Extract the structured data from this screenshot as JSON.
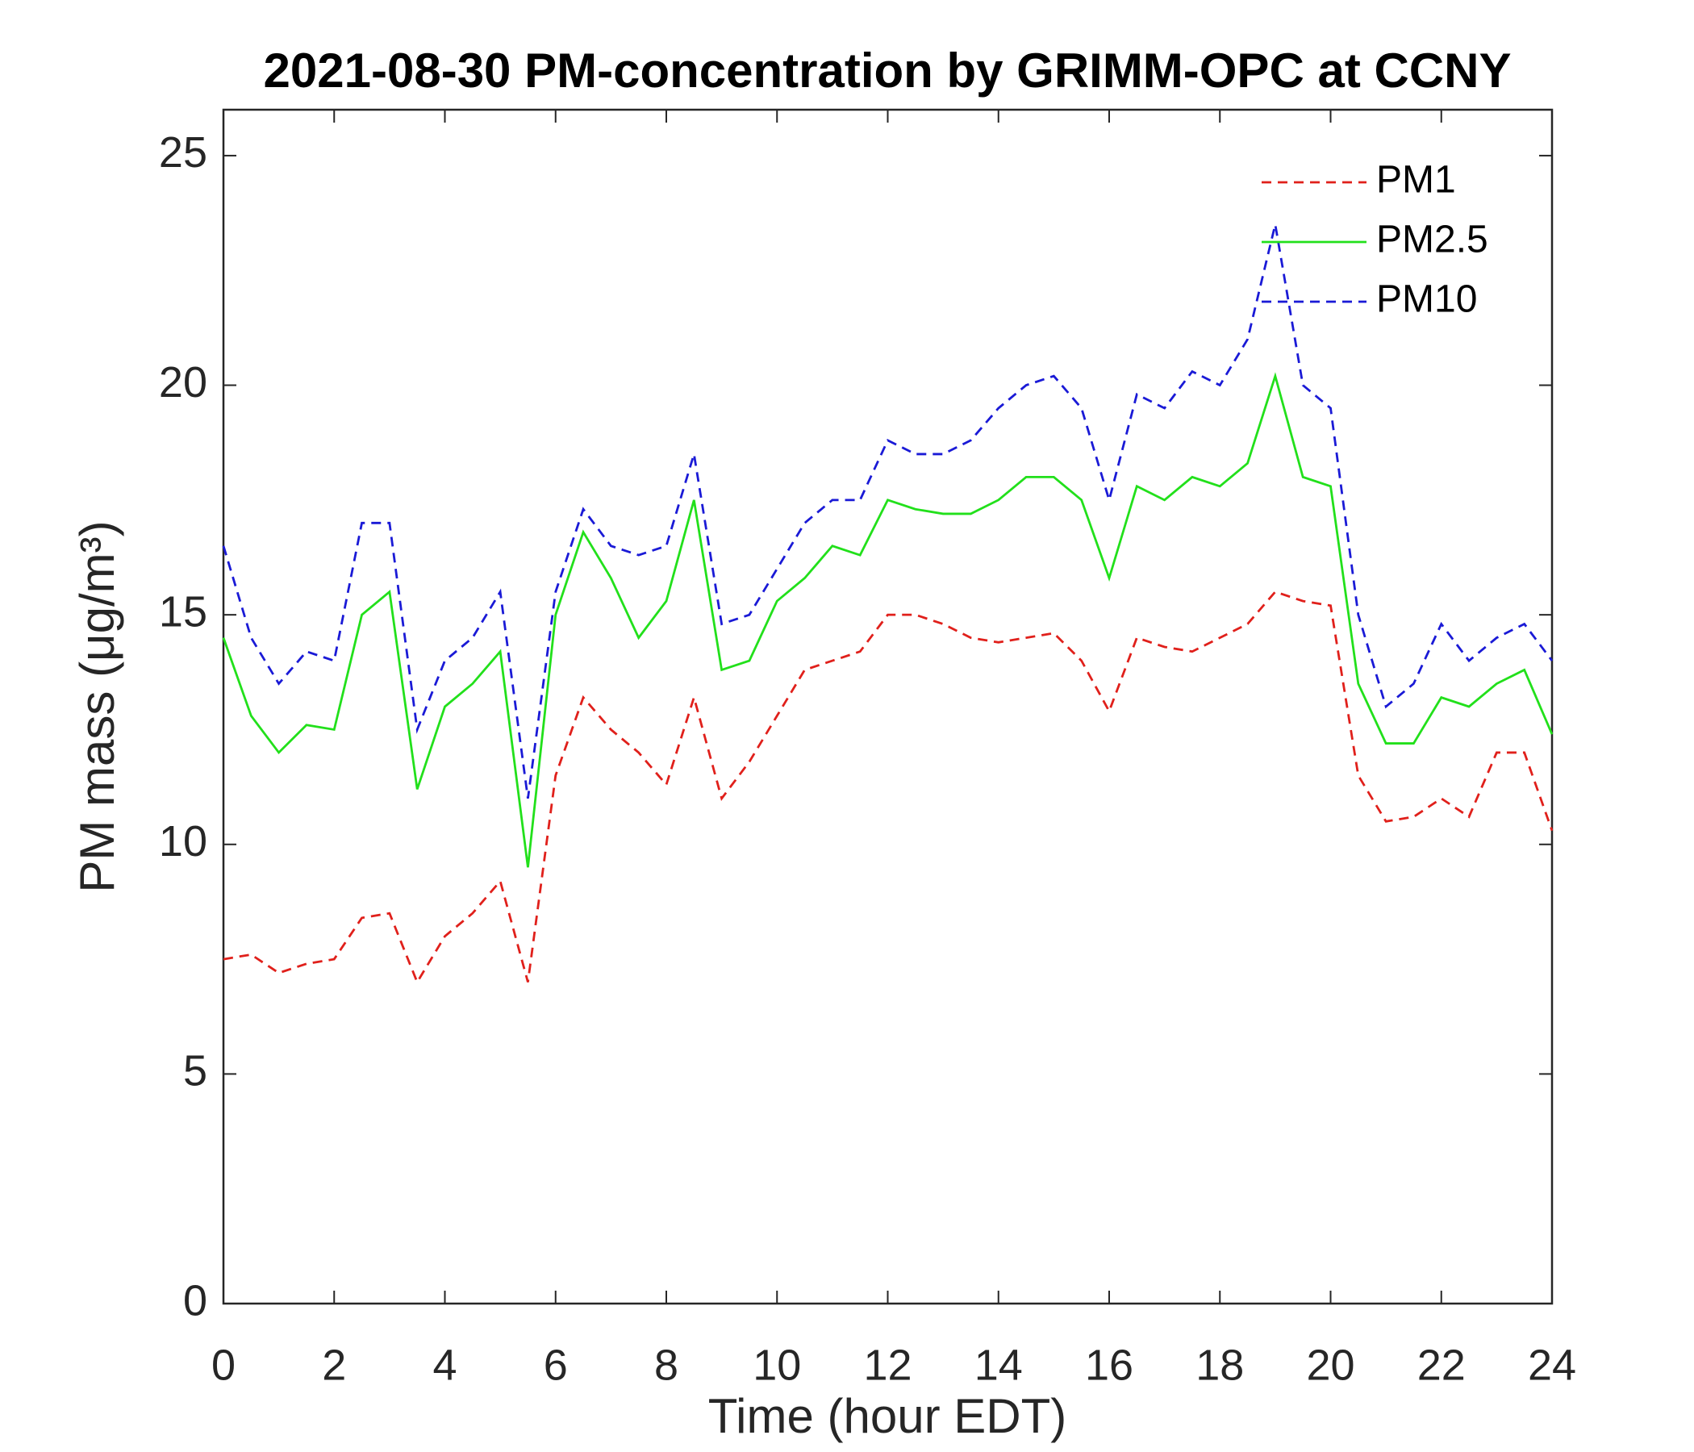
{
  "chart_data": {
    "type": "line",
    "title": "2021-08-30 PM-concentration by GRIMM-OPC at CCNY",
    "xlabel": "Time (hour EDT)",
    "ylabel": "PM mass (μg/m³)",
    "x": [
      0,
      0.5,
      1,
      1.5,
      2,
      2.5,
      3,
      3.5,
      4,
      4.5,
      5,
      5.5,
      6,
      6.5,
      7,
      7.5,
      8,
      8.5,
      9,
      9.5,
      10,
      10.5,
      11,
      11.5,
      12,
      12.5,
      13,
      13.5,
      14,
      14.5,
      15,
      15.5,
      16,
      16.5,
      17,
      17.5,
      18,
      18.5,
      19,
      19.5,
      20,
      20.5,
      21,
      21.5,
      22,
      22.5,
      23,
      23.5,
      24
    ],
    "series": [
      {
        "name": "PM1",
        "color": "#e0201b",
        "style": "dashed",
        "values": [
          7.5,
          7.6,
          7.2,
          7.4,
          7.5,
          8.4,
          8.5,
          7,
          8,
          8.5,
          9.2,
          7,
          11.5,
          13.2,
          12.5,
          12,
          11.3,
          13.2,
          11,
          11.8,
          12.8,
          13.8,
          14,
          14.2,
          15,
          15,
          14.8,
          14.5,
          14.4,
          14.5,
          14.6,
          14,
          12.9,
          14.5,
          14.3,
          14.2,
          14.5,
          14.8,
          15.5,
          15.3,
          15.2,
          11.5,
          10.5,
          10.6,
          11,
          10.6,
          12,
          12,
          10.3
        ]
      },
      {
        "name": "PM2.5",
        "color": "#22e01b",
        "style": "solid",
        "values": [
          14.5,
          12.8,
          12,
          12.6,
          12.5,
          15,
          15.5,
          11.2,
          13,
          13.5,
          14.2,
          9.5,
          15,
          16.8,
          15.8,
          14.5,
          15.3,
          17.5,
          13.8,
          14,
          15.3,
          15.8,
          16.5,
          16.3,
          17.5,
          17.3,
          17.2,
          17.2,
          17.5,
          18,
          18,
          17.5,
          15.8,
          17.8,
          17.5,
          18,
          17.8,
          18.3,
          20.2,
          18,
          17.8,
          13.5,
          12.2,
          12.2,
          13.2,
          13,
          13.5,
          13.8,
          12.4
        ]
      },
      {
        "name": "PM10",
        "color": "#1a1ad6",
        "style": "dashed",
        "values": [
          16.5,
          14.5,
          13.5,
          14.2,
          14,
          17,
          17,
          12.5,
          14,
          14.5,
          15.5,
          11,
          15.5,
          17.3,
          16.5,
          16.3,
          16.5,
          18.5,
          14.8,
          15,
          16,
          17,
          17.5,
          17.5,
          18.8,
          18.5,
          18.5,
          18.8,
          19.5,
          20,
          20.2,
          19.5,
          17.5,
          19.8,
          19.5,
          20.3,
          20,
          21,
          23.5,
          20,
          19.5,
          15,
          13,
          13.5,
          14.8,
          14,
          14.5,
          14.8,
          14
        ]
      }
    ],
    "xlim": [
      0,
      24
    ],
    "xticks": [
      0,
      2,
      4,
      6,
      8,
      10,
      12,
      14,
      16,
      18,
      20,
      22,
      24
    ],
    "ylim": [
      0,
      26
    ],
    "yticks": [
      0,
      5,
      10,
      15,
      20,
      25
    ],
    "legend": "upper right",
    "grid": false
  }
}
